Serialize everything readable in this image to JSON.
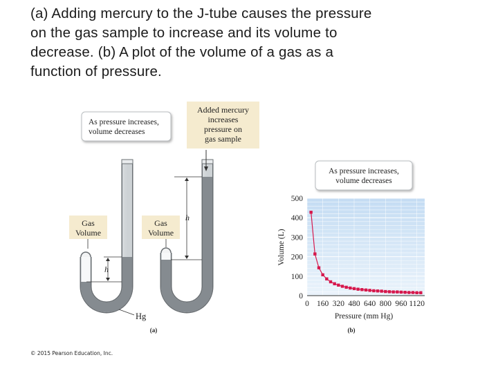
{
  "heading": {
    "lines": [
      "(a) Adding mercury to the J-tube causes the pressure",
      "on the gas sample to increase and its volume to",
      "decrease. (b) A plot of the volume of a gas as a",
      "function of pressure."
    ]
  },
  "panel_a": {
    "callout_lines": [
      "As pressure increases,",
      "volume decreases"
    ],
    "added_mercury_lines": [
      "Added mercury",
      "increases",
      "pressure on",
      "gas sample"
    ],
    "gas_left_lines": [
      "Gas",
      "Volume"
    ],
    "gas_right_lines": [
      "Gas",
      "Volume"
    ],
    "h_left": "h",
    "h_right": "h",
    "hg": "Hg",
    "label": "(a)",
    "colors": {
      "note": "#f5ebcf",
      "mercury": "#858b90",
      "glass": "#e9ecee"
    }
  },
  "panel_b": {
    "callout_lines": [
      "As pressure increases,",
      "volume decreases"
    ],
    "label": "(b)"
  },
  "chart_data": {
    "type": "scatter",
    "title": "",
    "xlabel": "Pressure (mm Hg)",
    "ylabel": "Volume (L)",
    "xlim": [
      0,
      1200
    ],
    "ylim": [
      0,
      500
    ],
    "xticks": [
      0,
      160,
      320,
      480,
      640,
      800,
      960,
      1120
    ],
    "yticks": [
      0,
      100,
      200,
      300,
      400,
      500
    ],
    "grid": true,
    "series": [
      {
        "color": "#d6184c",
        "x": [
          40,
          80,
          120,
          160,
          200,
          240,
          280,
          320,
          360,
          400,
          440,
          480,
          520,
          560,
          600,
          640,
          680,
          720,
          760,
          800,
          840,
          880,
          920,
          960,
          1000,
          1040,
          1080,
          1120,
          1160
        ],
        "y": [
          428,
          214,
          143,
          107,
          86,
          71,
          61,
          54,
          48,
          43,
          39,
          36,
          33,
          31,
          29,
          27,
          25,
          24,
          23,
          21,
          20,
          19,
          19,
          18,
          17,
          16,
          16,
          15,
          15
        ]
      }
    ]
  },
  "copyright": "© 2015 Pearson Education, Inc."
}
